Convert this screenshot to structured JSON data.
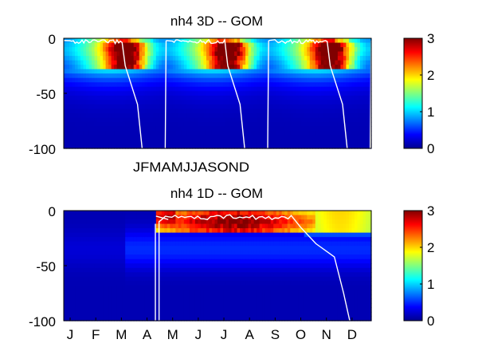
{
  "chart_data": [
    {
      "type": "heatmap",
      "title": "nh4 3D   -- GOM",
      "y_tick_labels": [
        "0",
        "-50",
        "-100"
      ],
      "x_tick_labels": "JFMAMJJASOND",
      "ylim": [
        -100,
        0
      ],
      "colorbar": {
        "colormap": "jet",
        "range": [
          0,
          3
        ],
        "tick_labels": [
          "0",
          "1",
          "2",
          "3"
        ]
      },
      "years_shown": 3,
      "high_band_depth": [
        -3,
        -25
      ],
      "mixed_layer_line_color": "#ffffff"
    },
    {
      "type": "heatmap",
      "title": "nh4 1D   -- GOM",
      "y_tick_labels": [
        "0",
        "-50",
        "-100"
      ],
      "x_tick_labels": [
        "J",
        "F",
        "M",
        "A",
        "M",
        "J",
        "J",
        "A",
        "S",
        "O",
        "N",
        "D"
      ],
      "ylim": [
        -100,
        0
      ],
      "colorbar": {
        "colormap": "jet",
        "range": [
          0,
          3
        ],
        "tick_labels": [
          "0",
          "1",
          "2",
          "3"
        ]
      },
      "high_band_months": [
        "May",
        "October"
      ],
      "mixed_layer_line_color": "#ffffff"
    }
  ]
}
